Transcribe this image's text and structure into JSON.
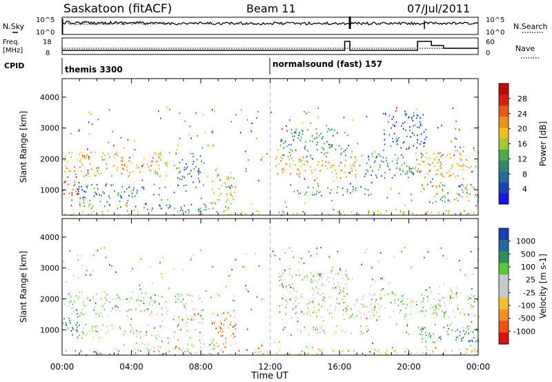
{
  "header": {
    "station": "Saskatoon (fitACF)",
    "beam": "Beam 11",
    "date": "07/Jul/2011"
  },
  "noise_panel": {
    "left_label": "N.Sky",
    "right_label": "N.Search",
    "left_ticks": [
      "10^5",
      "10^0"
    ],
    "right_ticks": [
      "10^5",
      "10^0"
    ]
  },
  "freq_panel": {
    "left_label_1": "Freq.",
    "left_label_2": "[MHz]",
    "right_label": "Nave",
    "left_ticks": [
      "18",
      "8"
    ],
    "right_ticks": [
      "60",
      "0"
    ]
  },
  "cpid": {
    "label": "CPID",
    "segments": [
      {
        "name": "themis 3300",
        "start_hour": 0
      },
      {
        "name": "normalsound (fast) 157",
        "start_hour": 12
      }
    ]
  },
  "x_axis": {
    "label": "Time UT",
    "ticks": [
      "00:00",
      "04:00",
      "08:00",
      "12:00",
      "16:00",
      "20:00",
      "00:00"
    ],
    "range_hours": [
      0,
      24
    ]
  },
  "chart_data": [
    {
      "type": "heatmap",
      "title": "Power",
      "ylabel": "Slant Range [km]",
      "y_ticks": [
        "1000",
        "2000",
        "3000",
        "4000"
      ],
      "ylim": [
        180,
        4600
      ],
      "colorbar": {
        "label": "Power [dB]",
        "ticks": [
          "4",
          "8",
          "12",
          "16",
          "20",
          "24",
          "28"
        ],
        "colors": [
          "#1a14e6",
          "#1f3fb4",
          "#2a6a9a",
          "#2f8a6a",
          "#4da84a",
          "#a8c830",
          "#f0c020",
          "#f09018",
          "#e85a14",
          "#d8200e",
          "#c00808"
        ]
      },
      "bands": [
        {
          "t0": 0.1,
          "t1": 6.1,
          "r0": 1450,
          "r1": 2250,
          "level": 0.62
        },
        {
          "t0": 0.0,
          "t1": 1.0,
          "r0": 800,
          "r1": 1450,
          "level": 0.9
        },
        {
          "t0": 0.5,
          "t1": 5.6,
          "r0": 750,
          "r1": 1200,
          "level": 0.25
        },
        {
          "t0": 0.5,
          "t1": 3.8,
          "r0": 450,
          "r1": 700,
          "level": 0.35
        },
        {
          "t0": 4.0,
          "t1": 10.0,
          "r0": 350,
          "r1": 600,
          "level": 0.3
        },
        {
          "t0": 6.5,
          "t1": 8.2,
          "r0": 1100,
          "r1": 2200,
          "level": 0.25
        },
        {
          "t0": 8.6,
          "t1": 10.0,
          "r0": 600,
          "r1": 1600,
          "level": 0.55
        },
        {
          "t0": 0.0,
          "t1": 24.0,
          "r0": 200,
          "r1": 350,
          "level": 0.5
        },
        {
          "t0": 12.3,
          "t1": 17.0,
          "r0": 1400,
          "r1": 2100,
          "level": 0.62
        },
        {
          "t0": 12.5,
          "t1": 16.5,
          "r0": 2100,
          "r1": 3000,
          "level": 0.3
        },
        {
          "t0": 13.5,
          "t1": 17.8,
          "r0": 850,
          "r1": 1150,
          "level": 0.28
        },
        {
          "t0": 16.8,
          "t1": 20.3,
          "r0": 1400,
          "r1": 2200,
          "level": 0.3
        },
        {
          "t0": 20.3,
          "t1": 24.0,
          "r0": 1400,
          "r1": 2300,
          "level": 0.58
        },
        {
          "t0": 20.6,
          "t1": 24.0,
          "r0": 600,
          "r1": 1200,
          "level": 0.45
        },
        {
          "t0": 18.5,
          "t1": 21.0,
          "r0": 2300,
          "r1": 3500,
          "level": 0.15
        }
      ]
    },
    {
      "type": "heatmap",
      "title": "Velocity",
      "ylabel": "Slant Range [km]",
      "y_ticks": [
        "1000",
        "2000",
        "3000",
        "4000"
      ],
      "ylim": [
        180,
        4600
      ],
      "colorbar": {
        "label": "Velocity [m s-1]",
        "ticks": [
          "1000",
          "500",
          "100",
          "25",
          "-25",
          "-100",
          "-500",
          "-1000"
        ],
        "colors": [
          "#1a3cb4",
          "#2468a0",
          "#2a9060",
          "#58c838",
          "#c8c8c8",
          "#c8c8c8",
          "#f0c030",
          "#f09020",
          "#f05010",
          "#e01010"
        ]
      },
      "bands": [
        {
          "t0": 0.1,
          "t1": 6.1,
          "r0": 1450,
          "r1": 2250,
          "level": 0.45
        },
        {
          "t0": 0.0,
          "t1": 1.0,
          "r0": 800,
          "r1": 1600,
          "level": 0.15
        },
        {
          "t0": 0.5,
          "t1": 5.6,
          "r0": 750,
          "r1": 1200,
          "level": 0.45
        },
        {
          "t0": 4.0,
          "t1": 10.0,
          "r0": 350,
          "r1": 600,
          "level": 0.5
        },
        {
          "t0": 6.5,
          "t1": 8.2,
          "r0": 1100,
          "r1": 2200,
          "level": 0.45
        },
        {
          "t0": 8.6,
          "t1": 10.0,
          "r0": 600,
          "r1": 1600,
          "level": 0.8
        },
        {
          "t0": 0.0,
          "t1": 10.0,
          "r0": 200,
          "r1": 350,
          "level": 0.3
        },
        {
          "t0": 10.0,
          "t1": 24.0,
          "r0": 200,
          "r1": 400,
          "level": 0.65
        },
        {
          "t0": 12.3,
          "t1": 17.0,
          "r0": 1400,
          "r1": 2100,
          "level": 0.45
        },
        {
          "t0": 12.5,
          "t1": 16.5,
          "r0": 2100,
          "r1": 3000,
          "level": 0.45
        },
        {
          "t0": 13.5,
          "t1": 17.8,
          "r0": 850,
          "r1": 1150,
          "level": 0.45
        },
        {
          "t0": 16.8,
          "t1": 20.3,
          "r0": 1400,
          "r1": 2200,
          "level": 0.45
        },
        {
          "t0": 20.3,
          "t1": 24.0,
          "r0": 1400,
          "r1": 2300,
          "level": 0.45
        },
        {
          "t0": 20.6,
          "t1": 24.0,
          "r0": 600,
          "r1": 1200,
          "level": 0.3
        },
        {
          "t0": 22.5,
          "t1": 24.0,
          "r0": 600,
          "r1": 1100,
          "level": 0.25
        }
      ]
    }
  ]
}
